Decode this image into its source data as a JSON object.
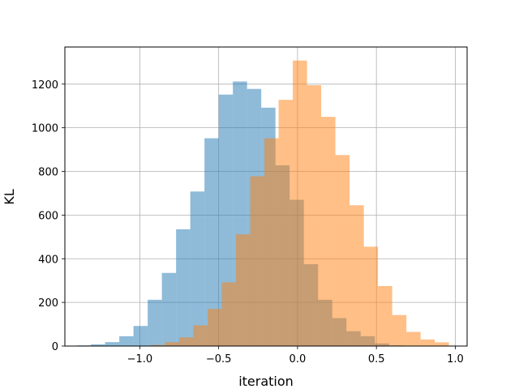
{
  "chart_data": {
    "type": "bar",
    "title": "",
    "xlabel": "iteration",
    "ylabel": "KL",
    "xlim": [
      -1.475,
      1.075
    ],
    "ylim": [
      0,
      1370
    ],
    "grid": true,
    "xticks": [
      -1.0,
      -0.5,
      0.0,
      0.5,
      1.0
    ],
    "xtick_labels": [
      "−1.0",
      "−0.5",
      "0.0",
      "0.5",
      "1.0"
    ],
    "yticks": [
      0,
      200,
      400,
      600,
      800,
      1000,
      1200
    ],
    "ytick_labels": [
      "0",
      "200",
      "400",
      "600",
      "800",
      "1000",
      "1200"
    ],
    "series": [
      {
        "color": "#1f77b4",
        "opacity": 0.5,
        "bin_edges": [
          -1.4,
          -1.31,
          -1.22,
          -1.13,
          -1.04,
          -0.95,
          -0.86,
          -0.77,
          -0.68,
          -0.59,
          -0.5,
          -0.41,
          -0.32,
          -0.23,
          -0.14,
          -0.05,
          0.04,
          0.13,
          0.22,
          0.31,
          0.4,
          0.49,
          0.58,
          0.67,
          0.76
        ],
        "values": [
          3,
          8,
          18,
          45,
          92,
          212,
          335,
          535,
          708,
          952,
          1152,
          1212,
          1178,
          1092,
          828,
          670,
          375,
          212,
          128,
          68,
          45,
          12,
          3,
          1
        ]
      },
      {
        "color": "#ff7f0e",
        "opacity": 0.5,
        "bin_edges": [
          -0.93,
          -0.84,
          -0.75,
          -0.66,
          -0.57,
          -0.48,
          -0.39,
          -0.3,
          -0.21,
          -0.12,
          -0.03,
          0.06,
          0.15,
          0.24,
          0.33,
          0.42,
          0.51,
          0.6,
          0.69,
          0.78,
          0.87,
          0.96
        ],
        "values": [
          5,
          18,
          40,
          95,
          170,
          292,
          512,
          778,
          952,
          1128,
          1308,
          1195,
          1050,
          875,
          645,
          455,
          275,
          142,
          65,
          30,
          17
        ]
      }
    ]
  }
}
